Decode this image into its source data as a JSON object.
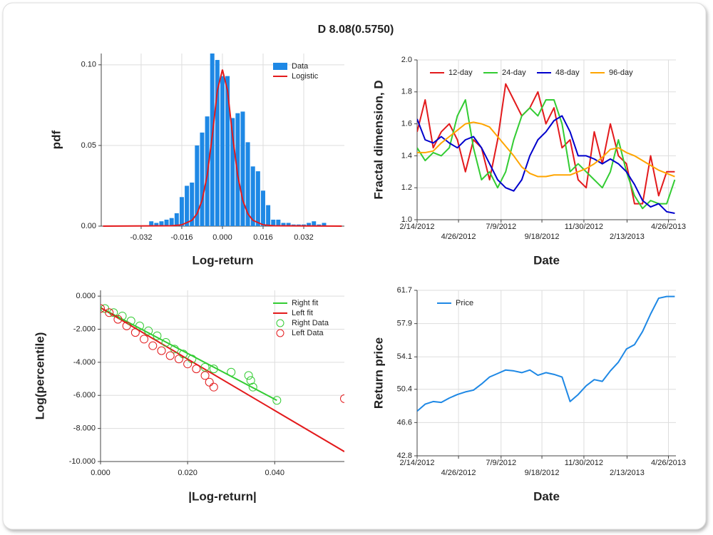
{
  "title": "D 8.08(0.5750)",
  "chart_data": [
    {
      "type": "histogram",
      "xlabel": "Log-return",
      "ylabel": "pdf",
      "name": "Data",
      "color": "#1e88e5",
      "bins": [
        -0.029,
        -0.027,
        -0.025,
        -0.023,
        -0.021,
        -0.019,
        -0.017,
        -0.015,
        -0.013,
        -0.011,
        -0.009,
        -0.007,
        -0.005,
        -0.003,
        -0.001,
        0.001,
        0.003,
        0.005,
        0.007,
        0.009,
        0.011,
        0.013,
        0.015,
        0.017,
        0.019,
        0.021,
        0.023,
        0.025,
        0.027,
        0.029,
        0.031,
        0.033,
        0.035,
        0.037,
        0.039,
        0.041
      ],
      "values": [
        0.003,
        0.002,
        0.003,
        0.004,
        0.005,
        0.008,
        0.018,
        0.025,
        0.027,
        0.05,
        0.058,
        0.068,
        0.107,
        0.103,
        0.093,
        0.093,
        0.067,
        0.07,
        0.071,
        0.052,
        0.037,
        0.034,
        0.022,
        0.013,
        0.004,
        0.004,
        0.002,
        0.002,
        0.001,
        0.001,
        0.001,
        0.002,
        0.003,
        0.001,
        0.002
      ],
      "curve": {
        "name": "Logistic",
        "color": "#e31a1c",
        "x": [
          -0.047,
          -0.02,
          -0.016,
          -0.012,
          -0.01,
          -0.008,
          -0.006,
          -0.004,
          -0.002,
          0,
          0.002,
          0.004,
          0.006,
          0.008,
          0.01,
          0.012,
          0.016,
          0.02,
          0.047
        ],
        "values": [
          0,
          0.0002,
          0.0008,
          0.0036,
          0.0077,
          0.016,
          0.0315,
          0.056,
          0.084,
          0.097,
          0.084,
          0.056,
          0.0315,
          0.016,
          0.0077,
          0.0036,
          0.0008,
          0.0002,
          0
        ]
      },
      "xlim": [
        -0.0477,
        0.048
      ],
      "ylim": [
        0,
        0.107
      ],
      "xticks": [
        -0.032,
        -0.016,
        {
          "value": 0,
          "label": "0.000"
        },
        0.016,
        0.032
      ],
      "yticks": [
        {
          "value": 0,
          "label": "0.00"
        },
        0.05,
        {
          "value": 0.1,
          "label": "0.10"
        }
      ],
      "grid": true,
      "legend": "top-right"
    },
    {
      "type": "line",
      "xlabel": "Date",
      "ylabel": "Fractal dimension, D",
      "x": [
        "2/14/2012",
        "2/28/2012",
        "3/13/2012",
        "3/27/2012",
        "4/10/2012",
        "4/24/2012",
        "5/8/2012",
        "5/22/2012",
        "6/5/2012",
        "6/19/2012",
        "7/3/2012",
        "7/17/2012",
        "7/31/2012",
        "8/14/2012",
        "8/28/2012",
        "9/11/2012",
        "9/25/2012",
        "10/9/2012",
        "10/23/2012",
        "11/6/2012",
        "11/20/2012",
        "12/4/2012",
        "12/18/2012",
        "1/1/2013",
        "1/15/2013",
        "1/29/2013",
        "2/12/2013",
        "2/26/2013",
        "3/12/2013",
        "3/26/2013",
        "4/9/2013",
        "4/23/2013",
        "5/7/2013"
      ],
      "series": [
        {
          "name": "12-day",
          "color": "#e31a1c",
          "values": [
            1.55,
            1.75,
            1.45,
            1.55,
            1.6,
            1.5,
            1.3,
            1.5,
            1.45,
            1.25,
            1.5,
            1.85,
            1.75,
            1.65,
            1.7,
            1.8,
            1.6,
            1.7,
            1.45,
            1.5,
            1.25,
            1.2,
            1.55,
            1.35,
            1.6,
            1.4,
            1.35,
            1.1,
            1.1,
            1.4,
            1.15,
            1.3,
            1.3
          ]
        },
        {
          "name": "24-day",
          "color": "#33cc33",
          "values": [
            1.45,
            1.37,
            1.42,
            1.4,
            1.45,
            1.65,
            1.75,
            1.45,
            1.25,
            1.3,
            1.2,
            1.3,
            1.5,
            1.65,
            1.7,
            1.65,
            1.75,
            1.75,
            1.6,
            1.3,
            1.35,
            1.3,
            1.25,
            1.2,
            1.3,
            1.5,
            1.3,
            1.15,
            1.07,
            1.12,
            1.1,
            1.1,
            1.25
          ]
        },
        {
          "name": "48-day",
          "color": "#0000cc",
          "values": [
            1.63,
            1.5,
            1.48,
            1.52,
            1.48,
            1.45,
            1.5,
            1.52,
            1.45,
            1.35,
            1.25,
            1.2,
            1.18,
            1.25,
            1.4,
            1.5,
            1.55,
            1.62,
            1.65,
            1.55,
            1.4,
            1.4,
            1.38,
            1.35,
            1.38,
            1.35,
            1.3,
            1.22,
            1.12,
            1.08,
            1.1,
            1.05,
            1.04
          ]
        },
        {
          "name": "96-day",
          "color": "#ffa500",
          "values": [
            1.42,
            1.42,
            1.43,
            1.48,
            1.52,
            1.56,
            1.6,
            1.61,
            1.6,
            1.58,
            1.52,
            1.46,
            1.4,
            1.33,
            1.29,
            1.27,
            1.27,
            1.28,
            1.28,
            1.28,
            1.3,
            1.32,
            1.35,
            1.39,
            1.44,
            1.45,
            1.42,
            1.4,
            1.37,
            1.34,
            1.31,
            1.29,
            1.27
          ]
        }
      ],
      "xlim": [
        "2/14/2012",
        "5/9/2013"
      ],
      "ylim": [
        1,
        2
      ],
      "xticks": [
        "2/14/2012",
        "4/26/2012",
        "7/9/2012",
        "9/18/2012",
        "11/30/2012",
        "2/13/2013",
        "4/26/2013"
      ],
      "yticks": [
        {
          "value": 1,
          "label": "1.0"
        },
        1.2,
        1.4,
        1.6,
        1.8,
        {
          "value": 2,
          "label": "2.0"
        }
      ],
      "grid": true,
      "legend": "top"
    },
    {
      "type": "scatter",
      "xlabel": "|Log-return|",
      "ylabel": "Log(percentile)",
      "series": [
        {
          "name": "Right fit",
          "kind": "line",
          "color": "#33cc33",
          "x": [
            0,
            0.0405
          ],
          "values": [
            -0.7,
            -6.3
          ]
        },
        {
          "name": "Left fit",
          "kind": "line",
          "color": "#e31a1c",
          "x": [
            0,
            0.056
          ],
          "values": [
            -0.7,
            -9.4
          ]
        },
        {
          "name": "Right Data",
          "kind": "marker",
          "color": "#33cc33",
          "x": [
            0.001,
            0.003,
            0.005,
            0.007,
            0.009,
            0.011,
            0.013,
            0.015,
            0.017,
            0.019,
            0.021,
            0.024,
            0.026,
            0.03,
            0.034,
            0.0345,
            0.035,
            0.0405
          ],
          "values": [
            -0.75,
            -1.0,
            -1.2,
            -1.5,
            -1.8,
            -2.1,
            -2.4,
            -2.8,
            -3.2,
            -3.5,
            -3.8,
            -4.3,
            -4.4,
            -4.6,
            -4.8,
            -5.1,
            -5.5,
            -6.3
          ]
        },
        {
          "name": "Left Data",
          "kind": "marker",
          "color": "#e31a1c",
          "x": [
            0,
            0.002,
            0.004,
            0.006,
            0.008,
            0.01,
            0.012,
            0.014,
            0.016,
            0.018,
            0.02,
            0.022,
            0.024,
            0.025,
            0.026,
            0.056
          ],
          "values": [
            -0.75,
            -1.0,
            -1.4,
            -1.8,
            -2.2,
            -2.6,
            -3.0,
            -3.3,
            -3.6,
            -3.8,
            -4.1,
            -4.4,
            -4.8,
            -5.2,
            -5.5,
            -6.2
          ]
        }
      ],
      "xlim": [
        0,
        0.056
      ],
      "ylim": [
        -10,
        0.35
      ],
      "xticks": [
        {
          "value": 0,
          "label": "0.000"
        },
        {
          "value": 0.02,
          "label": "0.020"
        },
        {
          "value": 0.04,
          "label": "0.040"
        }
      ],
      "yticks": [
        {
          "value": 0,
          "label": "0.000"
        },
        {
          "value": -2,
          "label": "-2.000"
        },
        {
          "value": -4,
          "label": "-4.000"
        },
        {
          "value": -6,
          "label": "-6.000"
        },
        {
          "value": -8,
          "label": "-8.000"
        },
        {
          "value": -10,
          "label": "-10.000"
        }
      ],
      "grid": true,
      "legend": "top-right"
    },
    {
      "type": "line",
      "xlabel": "Date",
      "ylabel": "Return price",
      "x": [
        "2/14/2012",
        "2/28/2012",
        "3/13/2012",
        "3/27/2012",
        "4/10/2012",
        "4/24/2012",
        "5/8/2012",
        "5/22/2012",
        "6/5/2012",
        "6/19/2012",
        "7/3/2012",
        "7/17/2012",
        "7/31/2012",
        "8/14/2012",
        "8/28/2012",
        "9/11/2012",
        "9/25/2012",
        "10/9/2012",
        "10/23/2012",
        "11/6/2012",
        "11/20/2012",
        "12/4/2012",
        "12/18/2012",
        "1/1/2013",
        "1/15/2013",
        "1/29/2013",
        "2/12/2013",
        "2/26/2013",
        "3/12/2013",
        "3/26/2013",
        "4/9/2013",
        "4/23/2013",
        "5/7/2013"
      ],
      "series": [
        {
          "name": "Price",
          "color": "#1e88e5",
          "values": [
            47.9,
            48.7,
            49.0,
            48.9,
            49.4,
            49.8,
            50.1,
            50.3,
            51.0,
            51.8,
            52.2,
            52.6,
            52.5,
            52.3,
            52.6,
            52.0,
            52.3,
            52.1,
            51.8,
            49.0,
            49.8,
            50.8,
            51.5,
            51.3,
            52.5,
            53.5,
            55.0,
            55.5,
            57.0,
            59.0,
            60.8,
            61.0,
            61.0
          ]
        }
      ],
      "xlim": [
        "2/14/2012",
        "5/9/2013"
      ],
      "ylim": [
        42.8,
        61.7
      ],
      "xticks": [
        "2/14/2012",
        "4/26/2012",
        "7/9/2012",
        "9/18/2012",
        "11/30/2012",
        "2/13/2013",
        "4/26/2013"
      ],
      "yticks": [
        42.8,
        46.6,
        50.4,
        54.1,
        57.9,
        61.7
      ],
      "grid": true,
      "legend": "top-left"
    }
  ]
}
